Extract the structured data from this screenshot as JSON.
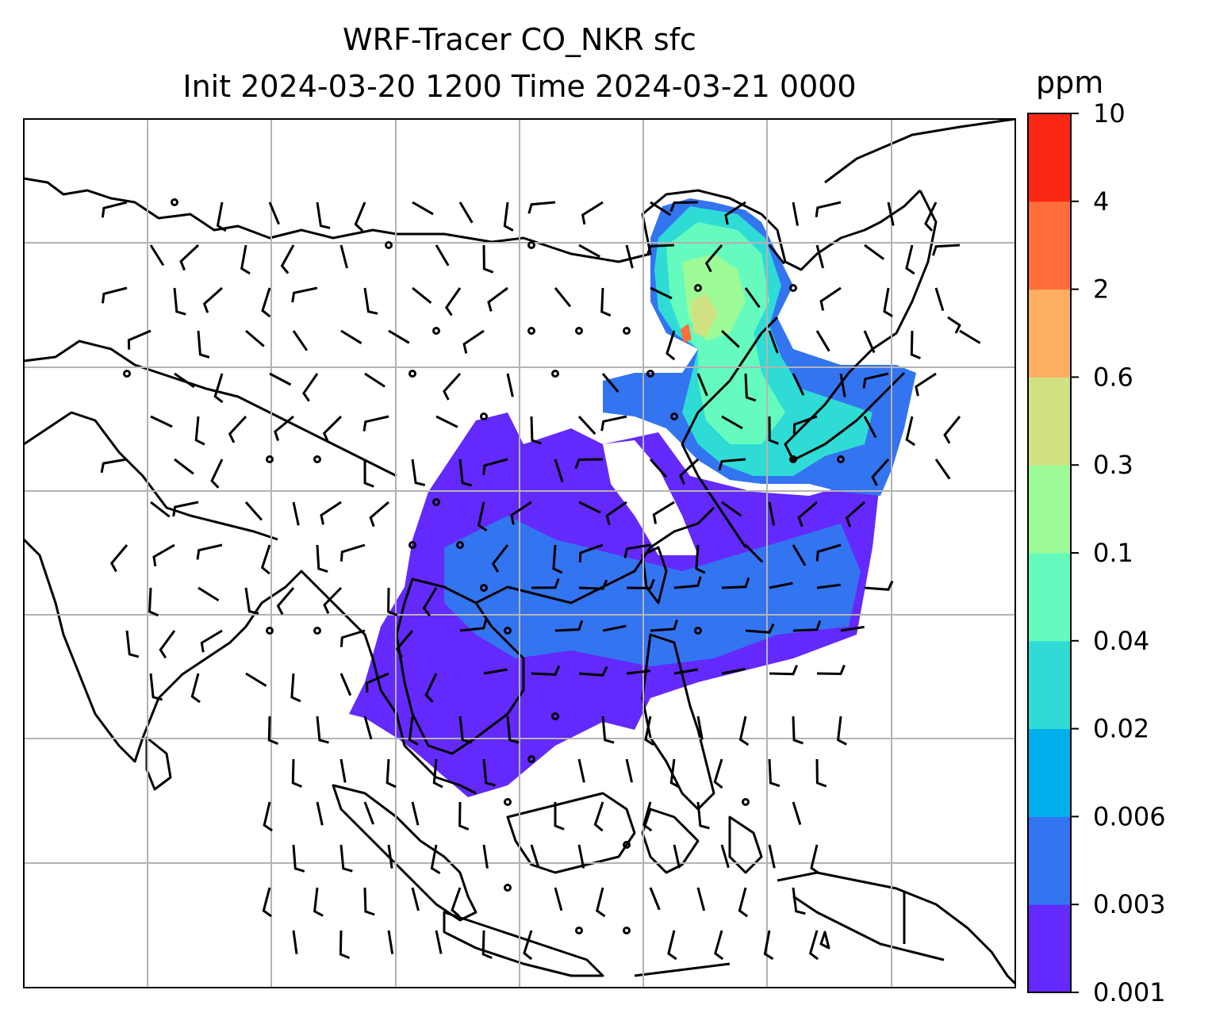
{
  "title": {
    "line1": "WRF-Tracer CO_NKR sfc",
    "line2": "Init 2024-03-20 1200 Time 2024-03-21 0000"
  },
  "colorbar": {
    "unit": "ppm",
    "levels": [
      "0.001",
      "0.003",
      "0.006",
      "0.02",
      "0.04",
      "0.1",
      "0.3",
      "0.6",
      "2",
      "4",
      "10"
    ],
    "colors": [
      "#6429fc",
      "#3374f1",
      "#00b0ed",
      "#2fdcd5",
      "#66fbbe",
      "#9cfb97",
      "#d0e182",
      "#fdae61",
      "#fd6e3a",
      "#fc2814"
    ]
  },
  "map": {
    "field": "CO_NKR surface concentration with wind barbs",
    "background": "#ffffff",
    "grid_color": "#b3b3b3",
    "coastline_color": "#000000"
  }
}
